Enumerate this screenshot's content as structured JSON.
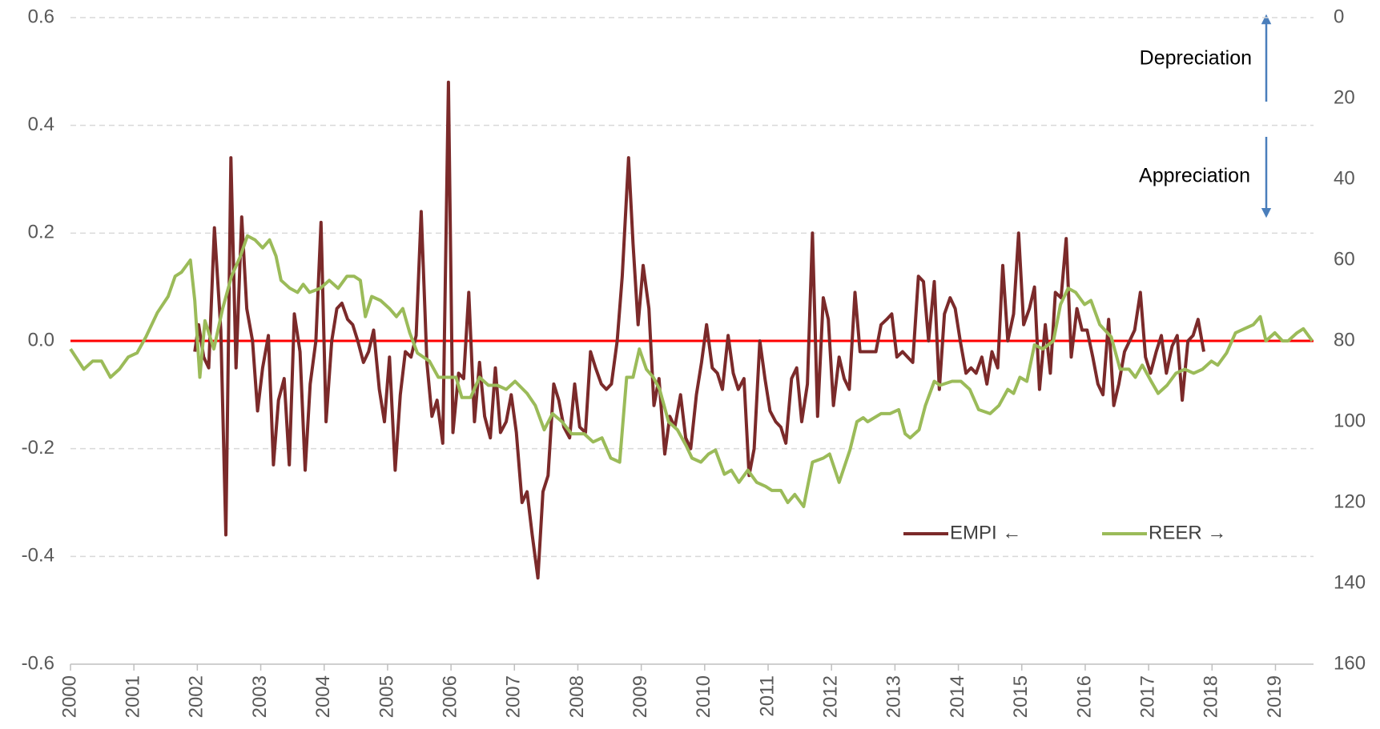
{
  "chart_data": {
    "type": "line",
    "annotations": [
      "Depreciation",
      "Appreciation"
    ],
    "xlim": [
      2000,
      2019.6
    ],
    "xticks": [
      2000,
      2001,
      2002,
      2003,
      2004,
      2005,
      2006,
      2007,
      2008,
      2009,
      2010,
      2011,
      2012,
      2013,
      2014,
      2015,
      2016,
      2017,
      2018,
      2019
    ],
    "ylim": [
      -0.6,
      0.6
    ],
    "yticks": [
      -0.6,
      -0.4,
      -0.2,
      {
        "value": 0,
        "label": "0.0"
      },
      0.2,
      0.4,
      0.6
    ],
    "y2lim": [
      160,
      0
    ],
    "y2ticks": [
      0,
      20,
      40,
      60,
      80,
      100,
      120,
      140,
      160
    ],
    "grid": true,
    "reference_lines": [
      {
        "value": 0,
        "color": "#ff0000"
      }
    ],
    "series": [
      {
        "name": "EMPI ←",
        "color": "#7b2a2a",
        "x": [
          2001.96,
          2002.02,
          2002.1,
          2002.18,
          2002.27,
          2002.37,
          2002.45,
          2002.53,
          2002.61,
          2002.7,
          2002.78,
          2002.87,
          2002.95,
          2003.03,
          2003.12,
          2003.2,
          2003.28,
          2003.37,
          2003.45,
          2003.53,
          2003.62,
          2003.7,
          2003.78,
          2003.87,
          2003.95,
          2004.03,
          2004.12,
          2004.2,
          2004.28,
          2004.37,
          2004.45,
          2004.53,
          2004.62,
          2004.7,
          2004.78,
          2004.87,
          2004.95,
          2005.03,
          2005.12,
          2005.2,
          2005.28,
          2005.37,
          2005.45,
          2005.53,
          2005.62,
          2005.7,
          2005.78,
          2005.87,
          2005.96,
          2006.03,
          2006.12,
          2006.2,
          2006.28,
          2006.37,
          2006.45,
          2006.53,
          2006.62,
          2006.7,
          2006.78,
          2006.87,
          2006.95,
          2007.03,
          2007.12,
          2007.2,
          2007.28,
          2007.37,
          2007.45,
          2007.53,
          2007.62,
          2007.7,
          2007.78,
          2007.87,
          2007.95,
          2008.03,
          2008.12,
          2008.2,
          2008.28,
          2008.37,
          2008.45,
          2008.53,
          2008.62,
          2008.7,
          2008.8,
          2008.87,
          2008.95,
          2009.03,
          2009.12,
          2009.2,
          2009.28,
          2009.37,
          2009.45,
          2009.53,
          2009.62,
          2009.7,
          2009.78,
          2009.87,
          2009.95,
          2010.03,
          2010.12,
          2010.2,
          2010.28,
          2010.37,
          2010.45,
          2010.53,
          2010.62,
          2010.7,
          2010.78,
          2010.87,
          2010.95,
          2011.03,
          2011.12,
          2011.2,
          2011.28,
          2011.37,
          2011.45,
          2011.53,
          2011.62,
          2011.7,
          2011.78,
          2011.87,
          2011.95,
          2012.03,
          2012.12,
          2012.2,
          2012.28,
          2012.37,
          2012.45,
          2012.53,
          2012.62,
          2012.7,
          2012.78,
          2012.87,
          2012.95,
          2013.03,
          2013.12,
          2013.2,
          2013.28,
          2013.37,
          2013.45,
          2013.53,
          2013.62,
          2013.7,
          2013.78,
          2013.87,
          2013.95,
          2014.03,
          2014.12,
          2014.2,
          2014.28,
          2014.37,
          2014.45,
          2014.53,
          2014.62,
          2014.7,
          2014.78,
          2014.87,
          2014.95,
          2015.03,
          2015.12,
          2015.2,
          2015.28,
          2015.37,
          2015.45,
          2015.53,
          2015.62,
          2015.7,
          2015.78,
          2015.87,
          2015.95,
          2016.03,
          2016.12,
          2016.2,
          2016.28,
          2016.37,
          2016.45,
          2016.53,
          2016.62,
          2016.7,
          2016.78,
          2016.87,
          2016.95,
          2017.03,
          2017.12,
          2017.2,
          2017.28,
          2017.37,
          2017.45,
          2017.53,
          2017.62,
          2017.7,
          2017.78,
          2017.87
        ],
        "values": [
          -0.02,
          0.03,
          -0.03,
          -0.05,
          0.21,
          0.02,
          -0.36,
          0.34,
          -0.05,
          0.23,
          0.06,
          0.0,
          -0.13,
          -0.05,
          0.01,
          -0.23,
          -0.11,
          -0.07,
          -0.23,
          0.05,
          -0.02,
          -0.24,
          -0.08,
          0.0,
          0.22,
          -0.15,
          0.0,
          0.06,
          0.07,
          0.04,
          0.03,
          0.0,
          -0.04,
          -0.02,
          0.02,
          -0.09,
          -0.15,
          -0.03,
          -0.24,
          -0.1,
          -0.02,
          -0.03,
          0.01,
          0.24,
          -0.04,
          -0.14,
          -0.11,
          -0.19,
          0.48,
          -0.17,
          -0.06,
          -0.07,
          0.09,
          -0.15,
          -0.04,
          -0.14,
          -0.18,
          -0.05,
          -0.17,
          -0.15,
          -0.1,
          -0.17,
          -0.3,
          -0.28,
          -0.36,
          -0.44,
          -0.28,
          -0.25,
          -0.08,
          -0.11,
          -0.16,
          -0.18,
          -0.08,
          -0.16,
          -0.17,
          -0.02,
          -0.05,
          -0.08,
          -0.09,
          -0.08,
          0.0,
          0.12,
          0.34,
          0.18,
          0.03,
          0.14,
          0.06,
          -0.12,
          -0.07,
          -0.21,
          -0.14,
          -0.16,
          -0.1,
          -0.18,
          -0.2,
          -0.1,
          -0.04,
          0.03,
          -0.05,
          -0.06,
          -0.09,
          0.01,
          -0.06,
          -0.09,
          -0.07,
          -0.25,
          -0.2,
          0.0,
          -0.07,
          -0.13,
          -0.15,
          -0.16,
          -0.19,
          -0.07,
          -0.05,
          -0.15,
          -0.08,
          0.2,
          -0.14,
          0.08,
          0.04,
          -0.12,
          -0.03,
          -0.07,
          -0.09,
          0.09,
          -0.02,
          -0.02,
          -0.02,
          -0.02,
          0.03,
          0.04,
          0.05,
          -0.03,
          -0.02,
          -0.03,
          -0.04,
          0.12,
          0.11,
          0.0,
          0.11,
          -0.09,
          0.05,
          0.08,
          0.06,
          0.0,
          -0.06,
          -0.05,
          -0.06,
          -0.03,
          -0.08,
          -0.02,
          -0.05,
          0.14,
          0.0,
          0.05,
          0.2,
          0.03,
          0.06,
          0.1,
          -0.09,
          0.03,
          -0.06,
          0.09,
          0.08,
          0.19,
          -0.03,
          0.06,
          0.02,
          0.02,
          -0.03,
          -0.08,
          -0.1,
          0.04,
          -0.12,
          -0.08,
          -0.02,
          0.0,
          0.02,
          0.09,
          -0.03,
          -0.06,
          -0.02,
          0.01,
          -0.06,
          -0.01,
          0.01,
          -0.11,
          0.0,
          0.01,
          0.04,
          -0.02
        ]
      },
      {
        "name": "REER →",
        "color": "#9bbb59",
        "axis": "y2",
        "x": [
          2000.0,
          2000.21,
          2000.35,
          2000.49,
          2000.63,
          2000.77,
          2000.91,
          2001.05,
          2001.19,
          2001.37,
          2001.54,
          2001.65,
          2001.75,
          2001.89,
          2001.96,
          2002.04,
          2002.12,
          2002.26,
          2002.4,
          2002.54,
          2002.68,
          2002.79,
          2002.91,
          2003.03,
          2003.14,
          2003.24,
          2003.32,
          2003.46,
          2003.58,
          2003.67,
          2003.77,
          2003.94,
          2004.08,
          2004.22,
          2004.36,
          2004.47,
          2004.57,
          2004.65,
          2004.75,
          2004.89,
          2005.03,
          2005.14,
          2005.24,
          2005.35,
          2005.47,
          2005.66,
          2005.8,
          2005.94,
          2006.08,
          2006.17,
          2006.31,
          2006.45,
          2006.59,
          2006.73,
          2006.87,
          2007.01,
          2007.2,
          2007.33,
          2007.47,
          2007.6,
          2007.75,
          2007.9,
          2008.1,
          2008.24,
          2008.38,
          2008.52,
          2008.66,
          2008.77,
          2008.87,
          2008.97,
          2009.08,
          2009.19,
          2009.29,
          2009.43,
          2009.57,
          2009.71,
          2009.8,
          2009.94,
          2010.06,
          2010.17,
          2010.31,
          2010.42,
          2010.54,
          2010.68,
          2010.82,
          2010.96,
          2011.06,
          2011.2,
          2011.31,
          2011.42,
          2011.56,
          2011.7,
          2011.87,
          2011.97,
          2012.12,
          2012.29,
          2012.4,
          2012.5,
          2012.57,
          2012.78,
          2012.92,
          2013.06,
          2013.16,
          2013.24,
          2013.38,
          2013.48,
          2013.62,
          2013.71,
          2013.9,
          2014.04,
          2014.18,
          2014.32,
          2014.5,
          2014.64,
          2014.78,
          2014.87,
          2014.97,
          2015.08,
          2015.2,
          2015.33,
          2015.5,
          2015.61,
          2015.73,
          2015.85,
          2015.99,
          2016.09,
          2016.23,
          2016.41,
          2016.55,
          2016.69,
          2016.79,
          2016.9,
          2017.04,
          2017.15,
          2017.29,
          2017.43,
          2017.57,
          2017.71,
          2017.85,
          2017.99,
          2018.09,
          2018.23,
          2018.37,
          2018.51,
          2018.65,
          2018.76,
          2018.85,
          2018.99,
          2019.11,
          2019.2,
          2019.34,
          2019.44,
          2019.58
        ],
        "values": [
          82,
          87,
          85,
          85,
          89,
          87,
          84,
          83,
          79,
          73,
          69,
          64,
          63,
          60,
          70,
          89,
          75,
          82,
          72,
          64,
          59,
          54,
          55,
          57,
          55,
          59,
          65,
          67,
          68,
          66,
          68,
          67,
          65,
          67,
          64,
          64,
          65,
          74,
          69,
          70,
          72,
          74,
          72,
          78,
          83,
          85,
          89,
          89,
          89,
          94,
          94,
          89,
          91,
          91,
          92,
          90,
          93,
          96,
          102,
          98,
          100,
          103,
          103,
          105,
          104,
          109,
          110,
          89,
          89,
          82,
          87,
          89,
          92,
          100,
          102,
          106,
          109,
          110,
          108,
          107,
          113,
          112,
          115,
          112,
          115,
          116,
          117,
          117,
          120,
          118,
          121,
          110,
          109,
          108,
          115,
          107,
          100,
          99,
          100,
          98,
          98,
          97,
          103,
          104,
          102,
          96,
          90,
          91,
          90,
          90,
          92,
          97,
          98,
          96,
          92,
          93,
          89,
          90,
          81,
          82,
          80,
          71,
          67,
          68,
          71,
          70,
          76,
          79,
          87,
          87,
          89,
          86,
          90,
          93,
          91,
          88,
          87,
          88,
          87,
          85,
          86,
          83,
          78,
          77,
          76,
          74,
          80,
          78,
          80,
          80,
          78,
          77,
          80
        ]
      }
    ]
  }
}
